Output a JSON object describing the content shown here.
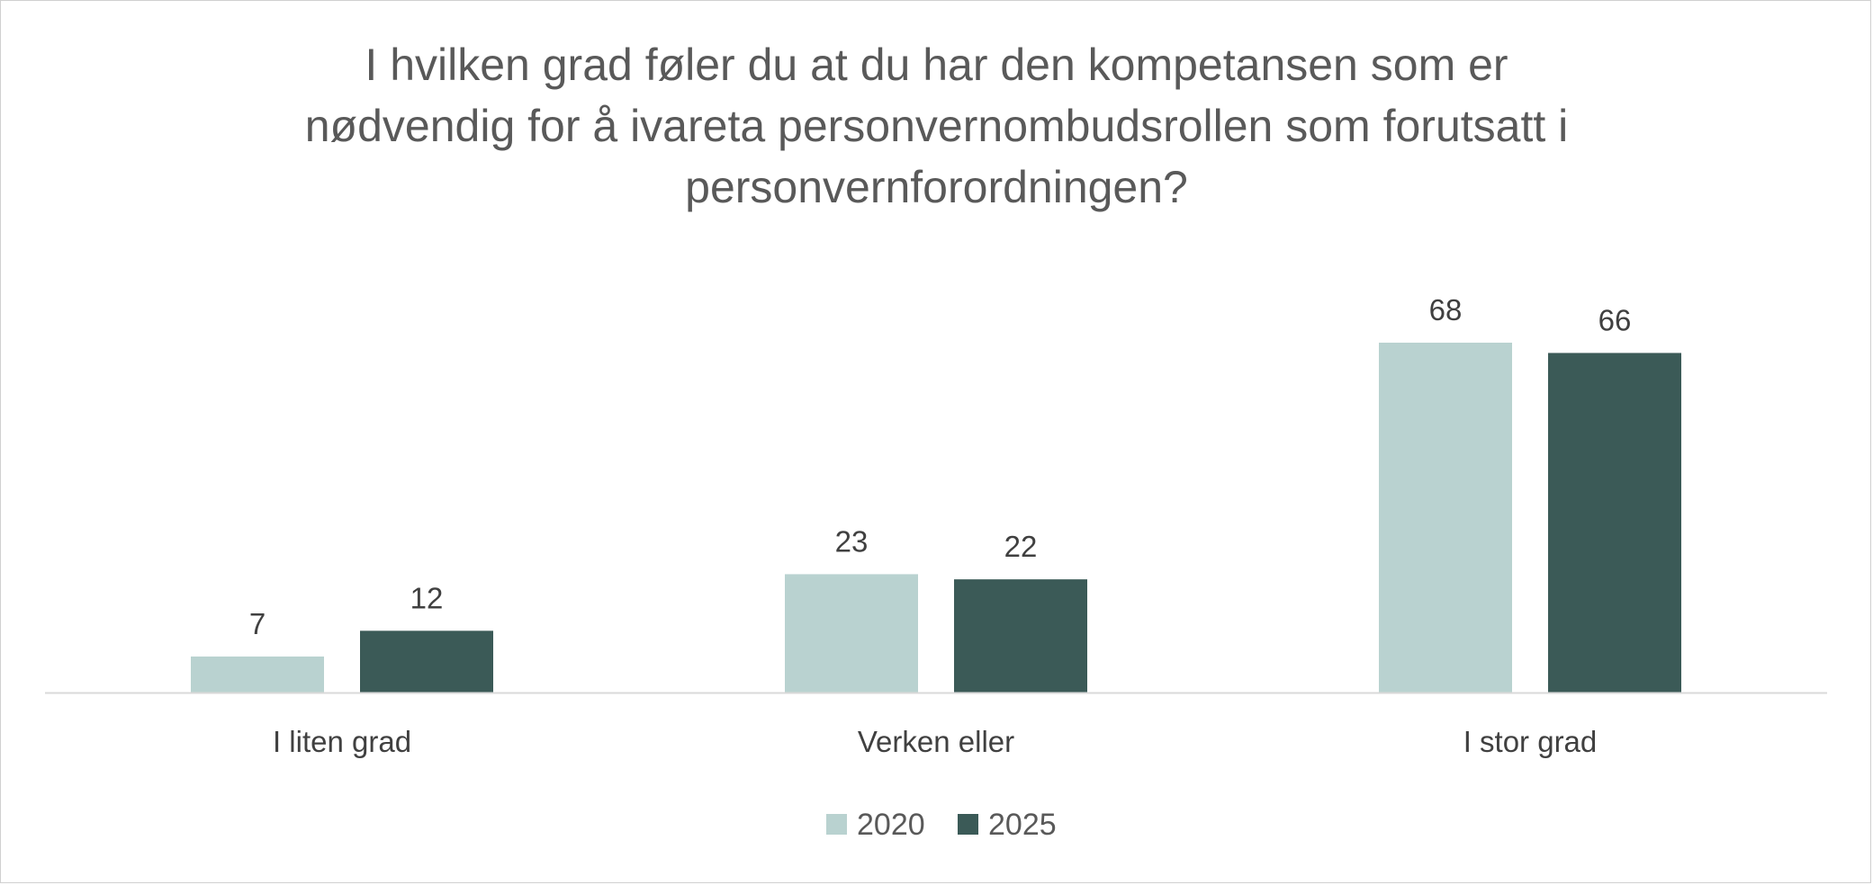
{
  "chart_data": {
    "type": "bar",
    "title": "I hvilken grad føler du at du har den kompetansen som er nødvendig for å ivareta personvernombudsrollen som forutsatt i personvernforordningen?",
    "title_lines": [
      "I hvilken grad føler du at du har den kompetansen som er",
      "nødvendig for å ivareta personvernombudsrollen som forutsatt i",
      "personvernforordningen?"
    ],
    "categories": [
      "I liten grad",
      "Verken eller",
      "I stor grad"
    ],
    "series": [
      {
        "name": "2020",
        "values": [
          7,
          23,
          68
        ],
        "color": "#b9d2d0"
      },
      {
        "name": "2025",
        "values": [
          12,
          22,
          66
        ],
        "color": "#3b5a57"
      }
    ],
    "xlabel": "",
    "ylabel": "",
    "ylim": [
      0,
      68
    ],
    "grid": false,
    "legend": "bottom"
  }
}
